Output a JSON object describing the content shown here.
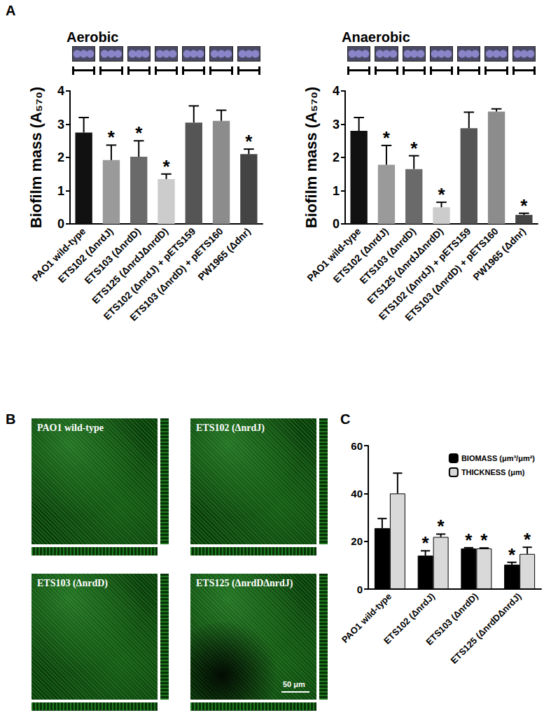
{
  "panel_labels": [
    "A",
    "B",
    "C"
  ],
  "chart_data": [
    {
      "type": "bar",
      "title": "Aerobic",
      "ylabel": "Biofilm mass (A₅₇₀)",
      "categories": [
        "PAO1 wild-type",
        "ETS102 (ΔnrdJ)",
        "ETS103 (ΔnrdD)",
        "ETS125 (ΔnrdJΔnrdD)",
        "ETS102 (ΔnrdJ) + pETS159",
        "ETS103 (ΔnrdD) + pETS160",
        "PW1965 (Δdnr)"
      ],
      "values": [
        2.75,
        1.92,
        2.02,
        1.35,
        3.05,
        3.1,
        2.1
      ],
      "errors": [
        0.45,
        0.45,
        0.48,
        0.15,
        0.5,
        0.32,
        0.15
      ],
      "annotations": [
        null,
        "*",
        "*",
        "*",
        null,
        null,
        "*"
      ],
      "colors": [
        "#111111",
        "#9a9a9a",
        "#6a6a6a",
        "#cccccc",
        "#555555",
        "#8c8c8c",
        "#444444"
      ],
      "ylim": [
        0,
        4
      ],
      "yticks": [
        0,
        1,
        2,
        3,
        4
      ],
      "grid": false
    },
    {
      "type": "bar",
      "title": "Anaerobic",
      "ylabel": "Biofilm mass (A₅₇₀)",
      "categories": [
        "PAO1 wild-type",
        "ETS102 (ΔnrdJ)",
        "ETS103 (ΔnrdD)",
        "ETS125 (ΔnrdJΔnrdD)",
        "ETS102 (ΔnrdJ) + pETS159",
        "ETS103 (ΔnrdD) + pETS160",
        "PW1965 (Δdnr)"
      ],
      "values": [
        2.8,
        1.78,
        1.65,
        0.5,
        2.88,
        3.38,
        0.27
      ],
      "errors": [
        0.4,
        0.58,
        0.4,
        0.15,
        0.48,
        0.08,
        0.05
      ],
      "annotations": [
        null,
        "*",
        "*",
        "*",
        null,
        null,
        "*"
      ],
      "colors": [
        "#111111",
        "#9a9a9a",
        "#6a6a6a",
        "#cccccc",
        "#555555",
        "#8c8c8c",
        "#444444"
      ],
      "ylim": [
        0,
        4
      ],
      "yticks": [
        0,
        1,
        2,
        3,
        4
      ],
      "grid": false
    },
    {
      "type": "bar",
      "categories": [
        "PAO1 wild-type",
        "ETS102 (ΔnrdJ)",
        "ETS103 (ΔnrdD)",
        "ETS125 (ΔnrdDΔnrdJ)"
      ],
      "series": [
        {
          "name": "BIOMASS (μm³/μm²)",
          "color": "#000000",
          "values": [
            25.5,
            14,
            17,
            10.2
          ],
          "errors": [
            4,
            2,
            0.3,
            1
          ],
          "annotations": [
            null,
            "*",
            "*",
            "*"
          ]
        },
        {
          "name": "THICKNESS (μm)",
          "color": "#d9d9d9",
          "values": [
            40,
            21.8,
            17,
            14.7
          ],
          "errors": [
            8.5,
            1.2,
            0.2,
            2.8
          ],
          "annotations": [
            null,
            "*",
            "*",
            "*"
          ]
        }
      ],
      "ylim": [
        0,
        60
      ],
      "yticks": [
        0,
        20,
        40,
        60
      ],
      "grid": false,
      "legend": "upper right"
    }
  ],
  "images": {
    "tiles": [
      "PAO1 wild-type",
      "ETS102 (ΔnrdJ)",
      "ETS103 (ΔnrdD)",
      "ETS125 (ΔnrdDΔnrdJ)"
    ],
    "scale_bar": "50 μm"
  }
}
